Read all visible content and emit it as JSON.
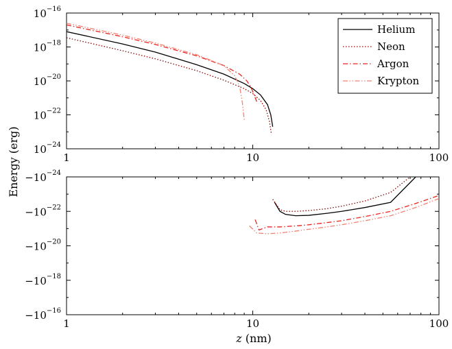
{
  "chart_data": [
    {
      "type": "line",
      "panel": "top",
      "xscale": "log",
      "yscale": "log",
      "xlim": [
        1,
        100
      ],
      "ylim": [
        1e-24,
        1e-16
      ],
      "x_tick_labels": [
        "1",
        "10",
        "100"
      ],
      "y_tick_labels": [
        {
          "base": "10",
          "exp": "−16"
        },
        {
          "base": "10",
          "exp": "−18"
        },
        {
          "base": "10",
          "exp": "−20"
        },
        {
          "base": "10",
          "exp": "−22"
        },
        {
          "base": "10",
          "exp": "−24"
        }
      ],
      "legend_position": "top-right",
      "grid": false,
      "series": [
        {
          "name": "Helium",
          "style": "solid",
          "color": "#000000",
          "x": [
            1,
            2,
            3,
            5,
            7,
            9,
            10,
            11,
            12,
            12.5,
            12.8
          ],
          "y": [
            8e-18,
            1.5e-18,
            5e-19,
            9e-20,
            2.5e-20,
            7e-21,
            3.5e-21,
            1.5e-21,
            4e-22,
            1e-22,
            2e-23
          ]
        },
        {
          "name": "Neon",
          "style": "dotted",
          "color": "#8b0000",
          "x": [
            1,
            2,
            3,
            5,
            7,
            9,
            10,
            11,
            11.8,
            12.3,
            12.6
          ],
          "y": [
            3.5e-18,
            6e-19,
            2e-19,
            4e-20,
            1.1e-20,
            3.5e-21,
            1.8e-21,
            7e-22,
            2e-22,
            4e-23,
            7e-24
          ]
        },
        {
          "name": "Argon",
          "style": "dashdot",
          "color": "#e8231f",
          "x": [
            1,
            2,
            3,
            5,
            7,
            8.5,
            9.3,
            9.8,
            10.2,
            10.5
          ],
          "y": [
            2e-17,
            4e-18,
            1.4e-18,
            3e-19,
            8e-20,
            2.5e-20,
            1e-20,
            4e-21,
            1.4e-21,
            6e-22
          ]
        },
        {
          "name": "Krypton",
          "style": "dashdotdot",
          "color": "#f08070",
          "x": [
            1,
            2,
            3,
            5,
            7,
            8,
            8.5,
            8.8,
            9
          ],
          "y": [
            2.5e-17,
            5e-18,
            1.7e-18,
            3.5e-19,
            8e-20,
            2e-20,
            5e-21,
            5e-22,
            5e-23
          ]
        }
      ]
    },
    {
      "type": "line",
      "panel": "bottom",
      "xscale": "log",
      "yscale": "log",
      "xlim": [
        1,
        100
      ],
      "ylim_magnitude": [
        1e-24,
        1e-16
      ],
      "sign": "negative",
      "x_tick_labels": [
        "1",
        "10",
        "100"
      ],
      "y_tick_labels": [
        {
          "base": "−10",
          "exp": "−24"
        },
        {
          "base": "−10",
          "exp": "−22"
        },
        {
          "base": "−10",
          "exp": "−20"
        },
        {
          "base": "−10",
          "exp": "−18"
        },
        {
          "base": "−10",
          "exp": "−16"
        }
      ],
      "series": [
        {
          "name": "Helium",
          "style": "solid",
          "color": "#000000",
          "x": [
            13.1,
            14,
            15,
            17,
            20,
            25,
            30,
            40,
            55,
            75
          ],
          "y": [
            -3e-23,
            -1e-22,
            -1.5e-22,
            -1.8e-22,
            -1.7e-22,
            -1.3e-22,
            -1e-22,
            -6e-23,
            -3e-23,
            -1e-24
          ]
        },
        {
          "name": "Neon",
          "style": "dotted",
          "color": "#8b0000",
          "x": [
            12.8,
            14,
            15,
            17,
            20,
            25,
            30,
            40,
            55,
            70
          ],
          "y": [
            -2e-23,
            -8e-23,
            -1e-22,
            -1e-22,
            -9e-23,
            -7e-23,
            -5e-23,
            -2.5e-23,
            -8e-24,
            -1e-24
          ]
        },
        {
          "name": "Argon",
          "style": "dashdot",
          "color": "#e8231f",
          "x": [
            10.3,
            10.8,
            12,
            14,
            17,
            20,
            25,
            30,
            40,
            55,
            75,
            100
          ],
          "y": [
            -3e-22,
            -1.2e-21,
            -8e-22,
            -8e-22,
            -7e-22,
            -6e-22,
            -4.5e-22,
            -3.5e-22,
            -2e-22,
            -1e-22,
            -3.5e-23,
            -1.2e-23
          ]
        },
        {
          "name": "Krypton",
          "style": "dashdotdot",
          "color": "#f08070",
          "x": [
            9.6,
            10.5,
            12,
            14,
            17,
            20,
            25,
            30,
            40,
            55,
            75,
            100
          ],
          "y": [
            -7e-22,
            -1.8e-21,
            -2e-21,
            -1.8e-21,
            -1.4e-21,
            -1.1e-21,
            -8e-22,
            -6e-22,
            -3.5e-22,
            -1.8e-22,
            -6e-23,
            -1.8e-23
          ]
        }
      ]
    }
  ],
  "shared_axes": {
    "xlabel_var": "z",
    "xlabel_unit": " (nm)",
    "ylabel": "Energy (erg)"
  },
  "legend": {
    "entries": [
      "Helium",
      "Neon",
      "Argon",
      "Krypton"
    ]
  }
}
